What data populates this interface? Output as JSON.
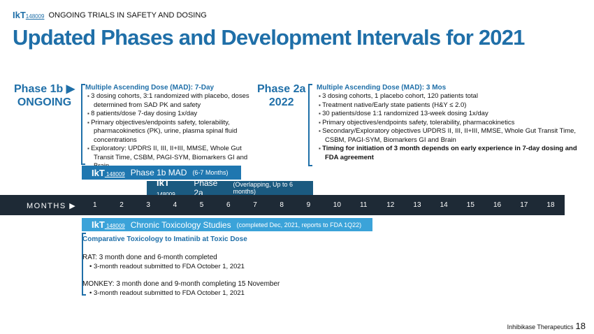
{
  "header": {
    "logo": "IkT",
    "logo_num": "148009",
    "section": "ONGOING TRIALS IN SAFETY AND DOSING",
    "title": "Updated Phases and Development Intervals for 2021"
  },
  "phase1b": {
    "label": "Phase 1b",
    "status": "ONGOING",
    "heading": "Multiple Ascending Dose (MAD):  7-Day",
    "items": [
      "3 dosing cohorts, 3:1 randomized with placebo, doses determined from SAD PK and safety",
      "8 patients/dose 7-day dosing 1x/day",
      "Primary objectives/endpoints safety, tolerability, pharmacokinetics (PK), urine, plasma spinal fluid concentrations",
      "Exploratory:  UPDRS II, III, II+III, MMSE, Whole Gut Transit Time, CSBM, PAGI-SYM, Biomarkers GI and Brain"
    ]
  },
  "phase2a": {
    "label": "Phase 2a",
    "year": "2022",
    "heading": "Multiple Ascending Dose (MAD): 3 Mos",
    "items": [
      "3 dosing cohorts, 1 placebo cohort, 120 patients total",
      "Treatment native/Early state patients (H&Y ≤ 2.0)",
      "30 patients/dose 1:1 randomized 13-week dosing 1x/day",
      "Primary objectives/endpoints safety, tolerability, pharmacokinetics",
      "Secondary/Exploratory objectives UPDRS II, III, II+III, MMSE, Whole Gut Transit Time, CSBM, PAGI-SYM, Biomarkers GI and Brain"
    ],
    "bold_item": "Timing for initiation of 3 month depends on early experience in 7-day dosing and FDA agreement"
  },
  "bars": {
    "p1b": {
      "label": "Phase 1b MAD",
      "sub": "(6-7 Months)",
      "months": 7
    },
    "p2a": {
      "label": "Phase 2a",
      "sub": "(Overlapping, Up to 6 months)",
      "months": 6
    },
    "tox": {
      "label": "Chronic Toxicology Studies",
      "sub": "(completed Dec, 2021, reports to FDA 1Q22)"
    }
  },
  "timeline": {
    "label": "MONTHS ▶",
    "months": [
      "1",
      "2",
      "3",
      "4",
      "5",
      "6",
      "7",
      "8",
      "9",
      "10",
      "11",
      "12",
      "13",
      "14",
      "15",
      "16",
      "17",
      "18"
    ]
  },
  "tox": {
    "heading": "Comparative Toxicology to Imatinib at Toxic Dose",
    "rat": "RAT:  3 month done and 6-month completed",
    "rat_item": "3-month readout  submitted to FDA October 1, 2021",
    "monkey": "MONKEY:  3 month done and 9-month completing 15 November",
    "monkey_item": "3-month readout submitted to FDA October 1, 2021"
  },
  "footer": {
    "company": "Inhibikase Therapeutics",
    "page": "18"
  },
  "colors": {
    "blue": "#1f6fa8",
    "p1b": "#1f77b0",
    "p2a": "#1b5a80",
    "tox": "#3ba3d9",
    "dark": "#1e2a36"
  }
}
